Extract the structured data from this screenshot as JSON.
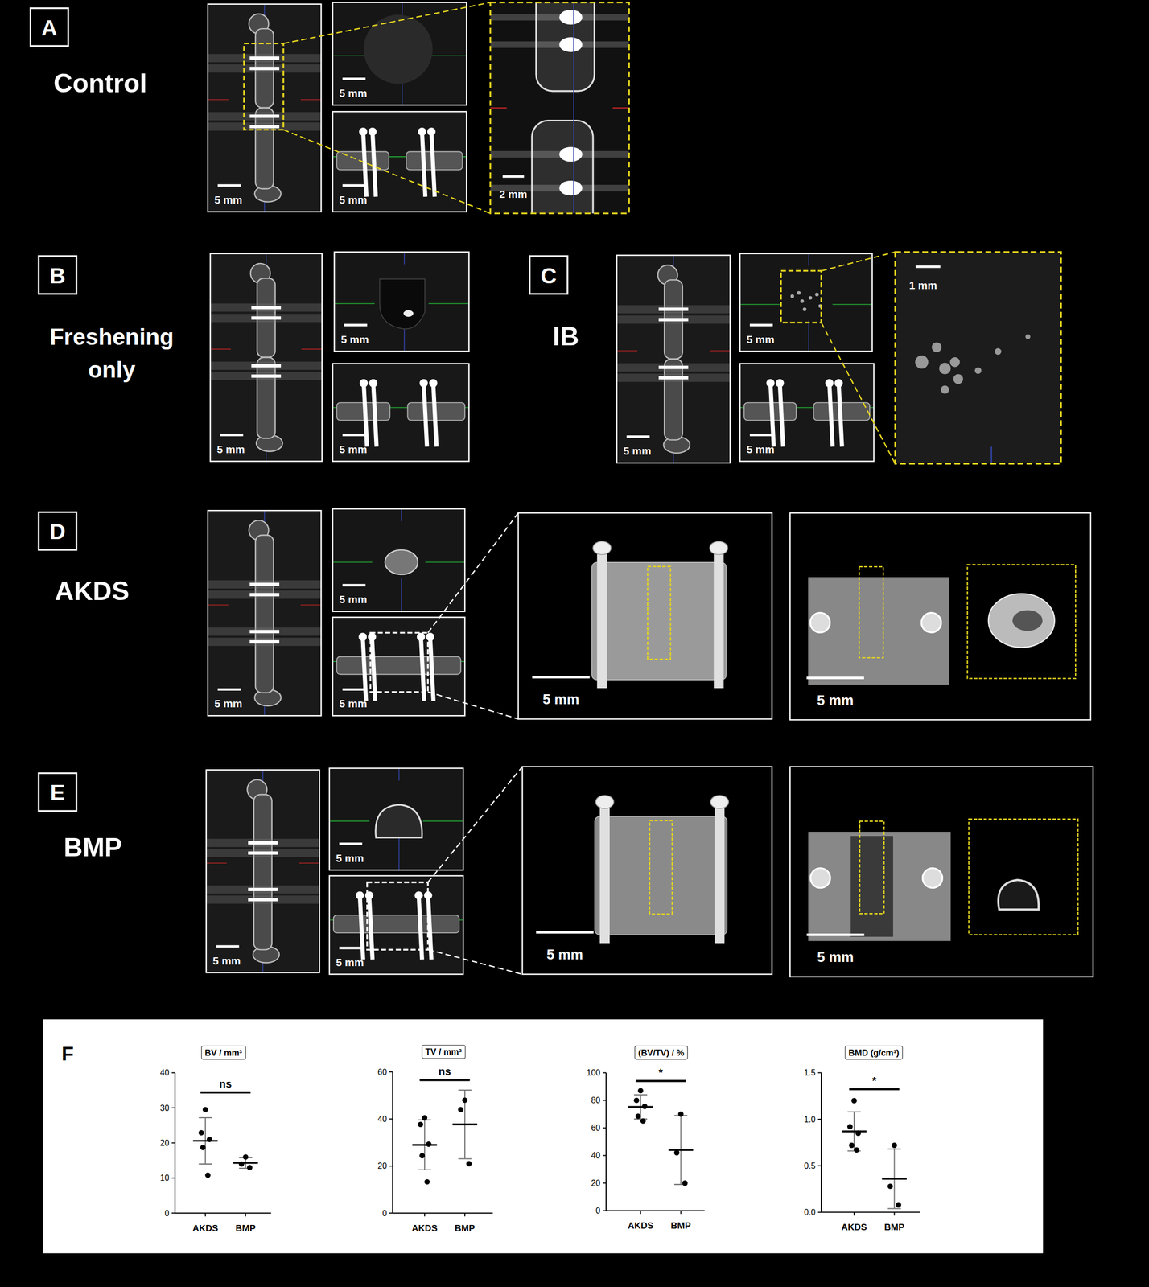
{
  "figure": {
    "panels": [
      {
        "letter": "A",
        "label_lines": [
          "Control"
        ],
        "scale_bars": [
          "5 mm",
          "5 mm",
          "5 mm",
          "2 mm"
        ]
      },
      {
        "letter": "B",
        "label_lines": [
          "Freshening",
          "only"
        ],
        "scale_bars": [
          "5 mm",
          "5 mm",
          "5 mm"
        ]
      },
      {
        "letter": "C",
        "label_lines": [
          "IB"
        ],
        "scale_bars": [
          "5 mm",
          "5 mm",
          "5 mm",
          "1 mm"
        ]
      },
      {
        "letter": "D",
        "label_lines": [
          "AKDS"
        ],
        "scale_bars": [
          "5 mm",
          "5 mm",
          "5 mm",
          "5 mm",
          "5 mm"
        ]
      },
      {
        "letter": "E",
        "label_lines": [
          "BMP"
        ],
        "scale_bars": [
          "5 mm",
          "5 mm",
          "5 mm",
          "5 mm",
          "5 mm"
        ]
      }
    ],
    "chart_panel_letter": "F"
  },
  "chart_data": [
    {
      "type": "dot",
      "title": "BV / mm³",
      "categories": [
        "AKDS",
        "BMP"
      ],
      "points": [
        [
          29.5,
          22.9,
          21,
          18.7,
          10.8
        ],
        [
          16,
          14,
          13
        ]
      ],
      "means": [
        20.6,
        14.3
      ],
      "sd": [
        6.6,
        1.5
      ],
      "ylim": [
        0,
        40
      ],
      "yticks": [
        0,
        10,
        20,
        30,
        40
      ],
      "annotation": "ns"
    },
    {
      "type": "dot",
      "title": "TV / mm³",
      "categories": [
        "AKDS",
        "BMP"
      ],
      "points": [
        [
          40.5,
          37.7,
          29.3,
          24.4,
          13.3
        ],
        [
          48,
          44,
          21
        ]
      ],
      "means": [
        29.0,
        37.7
      ],
      "sd": [
        10.6,
        14.6
      ],
      "ylim": [
        0,
        60
      ],
      "yticks": [
        0,
        20,
        40,
        60
      ],
      "annotation": "ns"
    },
    {
      "type": "dot",
      "title": "(BV/TV) / %",
      "categories": [
        "AKDS",
        "BMP"
      ],
      "points": [
        [
          87,
          80,
          75.6,
          68.5,
          65
        ],
        [
          70,
          42,
          20
        ]
      ],
      "means": [
        75.2,
        44
      ],
      "sd": [
        8.8,
        25
      ],
      "ylim": [
        0,
        100
      ],
      "yticks": [
        0,
        20,
        40,
        60,
        80,
        100
      ],
      "annotation": "*"
    },
    {
      "type": "dot",
      "title": "BMD (g/cm³)",
      "categories": [
        "AKDS",
        "BMP"
      ],
      "points": [
        [
          1.2,
          0.92,
          0.85,
          0.72,
          0.67
        ],
        [
          0.72,
          0.28,
          0.08
        ]
      ],
      "means": [
        0.87,
        0.36
      ],
      "sd": [
        0.21,
        0.32
      ],
      "ylim": [
        0,
        1.5
      ],
      "yticks": [
        {
          "value": 0,
          "label": "0.0"
        },
        0.5,
        {
          "value": 1,
          "label": "1.0"
        },
        1.5
      ],
      "annotation": "*"
    }
  ]
}
